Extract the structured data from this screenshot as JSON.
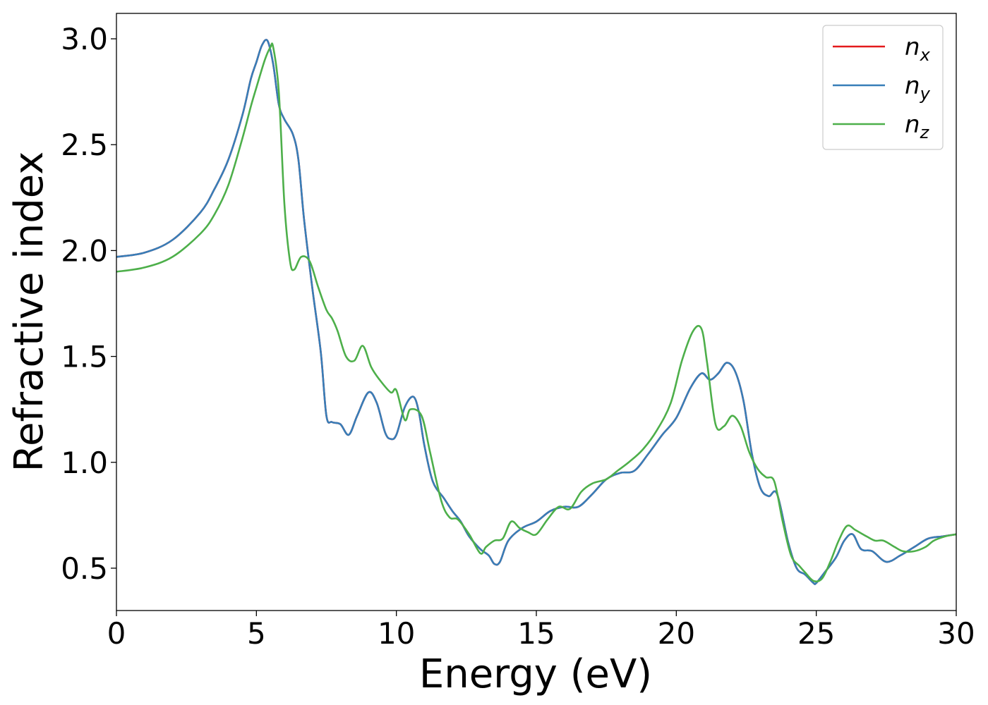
{
  "chart_data": {
    "type": "line",
    "xlabel": "Energy (eV)",
    "ylabel": "Refractive index",
    "xlim": [
      0,
      30
    ],
    "ylim": [
      0.3,
      3.12
    ],
    "xticks": [
      0,
      5,
      10,
      15,
      20,
      25,
      30
    ],
    "xtick_labels": [
      "0",
      "5",
      "10",
      "15",
      "20",
      "25",
      "30"
    ],
    "yticks": [
      0.5,
      1.0,
      1.5,
      2.0,
      2.5,
      3.0
    ],
    "ytick_labels": [
      "0.5",
      "1.0",
      "1.5",
      "2.0",
      "2.5",
      "3.0"
    ],
    "grid": false,
    "legend": "top-right",
    "series": [
      {
        "name": "n",
        "subscript": "x",
        "color": "#e41a1c",
        "x": [
          0,
          1,
          2,
          3,
          3.5,
          4,
          4.5,
          4.8,
          5,
          5.2,
          5.4,
          5.6,
          5.8,
          6.0,
          6.3,
          6.5,
          6.7,
          7.0,
          7.3,
          7.5,
          7.7,
          8.0,
          8.3,
          8.6,
          9.0,
          9.3,
          9.6,
          9.8,
          10.0,
          10.3,
          10.6,
          10.8,
          11.0,
          11.3,
          11.7,
          12.0,
          12.3,
          12.6,
          13.0,
          13.3,
          13.5,
          13.7,
          14.0,
          14.5,
          15.0,
          15.5,
          16.0,
          16.5,
          17.0,
          17.5,
          18.0,
          18.5,
          19.0,
          19.5,
          20.0,
          20.5,
          20.9,
          21.2,
          21.5,
          21.8,
          22.1,
          22.4,
          22.7,
          23.0,
          23.3,
          23.6,
          24.0,
          24.3,
          24.6,
          24.9,
          25.0,
          25.3,
          25.7,
          26.0,
          26.3,
          26.6,
          27.0,
          27.5,
          28.0,
          28.5,
          29.0,
          29.5,
          30.0
        ],
        "y": [
          1.97,
          1.99,
          2.05,
          2.18,
          2.29,
          2.43,
          2.64,
          2.81,
          2.89,
          2.97,
          2.99,
          2.88,
          2.69,
          2.62,
          2.55,
          2.43,
          2.15,
          1.82,
          1.52,
          1.22,
          1.19,
          1.18,
          1.13,
          1.22,
          1.33,
          1.28,
          1.14,
          1.11,
          1.13,
          1.26,
          1.31,
          1.24,
          1.08,
          0.91,
          0.83,
          0.77,
          0.72,
          0.65,
          0.59,
          0.56,
          0.52,
          0.53,
          0.63,
          0.69,
          0.72,
          0.77,
          0.79,
          0.79,
          0.85,
          0.92,
          0.95,
          0.96,
          1.04,
          1.13,
          1.21,
          1.35,
          1.42,
          1.39,
          1.42,
          1.47,
          1.43,
          1.29,
          1.04,
          0.88,
          0.84,
          0.85,
          0.62,
          0.5,
          0.47,
          0.43,
          0.43,
          0.48,
          0.55,
          0.63,
          0.66,
          0.59,
          0.58,
          0.53,
          0.56,
          0.6,
          0.64,
          0.65,
          0.66
        ]
      },
      {
        "name": "n",
        "subscript": "y",
        "color": "#377eb8",
        "x": [
          0,
          1,
          2,
          3,
          3.5,
          4,
          4.5,
          4.8,
          5,
          5.2,
          5.4,
          5.6,
          5.8,
          6.0,
          6.3,
          6.5,
          6.7,
          7.0,
          7.3,
          7.5,
          7.7,
          8.0,
          8.3,
          8.6,
          9.0,
          9.3,
          9.6,
          9.8,
          10.0,
          10.3,
          10.6,
          10.8,
          11.0,
          11.3,
          11.7,
          12.0,
          12.3,
          12.6,
          13.0,
          13.3,
          13.5,
          13.7,
          14.0,
          14.5,
          15.0,
          15.5,
          16.0,
          16.5,
          17.0,
          17.5,
          18.0,
          18.5,
          19.0,
          19.5,
          20.0,
          20.5,
          20.9,
          21.2,
          21.5,
          21.8,
          22.1,
          22.4,
          22.7,
          23.0,
          23.3,
          23.6,
          24.0,
          24.3,
          24.6,
          24.9,
          25.0,
          25.3,
          25.7,
          26.0,
          26.3,
          26.6,
          27.0,
          27.5,
          28.0,
          28.5,
          29.0,
          29.5,
          30.0
        ],
        "y": [
          1.97,
          1.99,
          2.05,
          2.18,
          2.29,
          2.43,
          2.64,
          2.81,
          2.89,
          2.97,
          2.99,
          2.88,
          2.69,
          2.62,
          2.55,
          2.43,
          2.15,
          1.82,
          1.52,
          1.22,
          1.19,
          1.18,
          1.13,
          1.22,
          1.33,
          1.28,
          1.14,
          1.11,
          1.13,
          1.26,
          1.31,
          1.24,
          1.08,
          0.91,
          0.83,
          0.77,
          0.72,
          0.65,
          0.59,
          0.56,
          0.52,
          0.53,
          0.63,
          0.69,
          0.72,
          0.77,
          0.79,
          0.79,
          0.85,
          0.92,
          0.95,
          0.96,
          1.04,
          1.13,
          1.21,
          1.35,
          1.42,
          1.39,
          1.42,
          1.47,
          1.43,
          1.29,
          1.04,
          0.88,
          0.84,
          0.85,
          0.62,
          0.5,
          0.47,
          0.43,
          0.43,
          0.48,
          0.55,
          0.63,
          0.66,
          0.59,
          0.58,
          0.53,
          0.56,
          0.6,
          0.64,
          0.65,
          0.66
        ]
      },
      {
        "name": "n",
        "subscript": "z",
        "color": "#4daf4a",
        "x": [
          0,
          1,
          2,
          3,
          3.5,
          4,
          4.5,
          4.8,
          5,
          5.3,
          5.5,
          5.6,
          5.8,
          6.0,
          6.2,
          6.35,
          6.6,
          6.9,
          7.2,
          7.5,
          7.7,
          7.9,
          8.2,
          8.5,
          8.8,
          9.1,
          9.4,
          9.8,
          10.0,
          10.3,
          10.5,
          10.9,
          11.2,
          11.6,
          11.9,
          12.2,
          12.6,
          13.0,
          13.2,
          13.5,
          13.8,
          14.1,
          14.4,
          14.7,
          15.0,
          15.4,
          15.8,
          16.2,
          16.6,
          17.0,
          17.5,
          17.9,
          18.3,
          18.8,
          19.3,
          19.8,
          20.2,
          20.6,
          20.9,
          21.1,
          21.4,
          21.7,
          22.0,
          22.3,
          22.6,
          22.9,
          23.2,
          23.5,
          23.8,
          24.1,
          24.4,
          24.6,
          24.9,
          25.2,
          25.5,
          25.8,
          26.1,
          26.4,
          26.8,
          27.1,
          27.4,
          27.8,
          28.1,
          28.5,
          28.9,
          29.2,
          29.6,
          30.0
        ],
        "y": [
          1.9,
          1.92,
          1.97,
          2.08,
          2.17,
          2.31,
          2.53,
          2.68,
          2.77,
          2.9,
          2.96,
          2.96,
          2.75,
          2.22,
          1.95,
          1.91,
          1.97,
          1.95,
          1.83,
          1.72,
          1.68,
          1.62,
          1.5,
          1.48,
          1.55,
          1.45,
          1.39,
          1.33,
          1.34,
          1.2,
          1.25,
          1.22,
          1.05,
          0.82,
          0.74,
          0.73,
          0.66,
          0.57,
          0.6,
          0.63,
          0.64,
          0.72,
          0.69,
          0.67,
          0.66,
          0.73,
          0.79,
          0.78,
          0.86,
          0.9,
          0.92,
          0.96,
          1.0,
          1.06,
          1.15,
          1.28,
          1.48,
          1.62,
          1.63,
          1.47,
          1.18,
          1.17,
          1.22,
          1.17,
          1.05,
          0.97,
          0.93,
          0.91,
          0.72,
          0.56,
          0.51,
          0.48,
          0.44,
          0.45,
          0.53,
          0.63,
          0.7,
          0.68,
          0.65,
          0.63,
          0.63,
          0.6,
          0.58,
          0.58,
          0.6,
          0.63,
          0.65,
          0.66
        ]
      }
    ]
  }
}
